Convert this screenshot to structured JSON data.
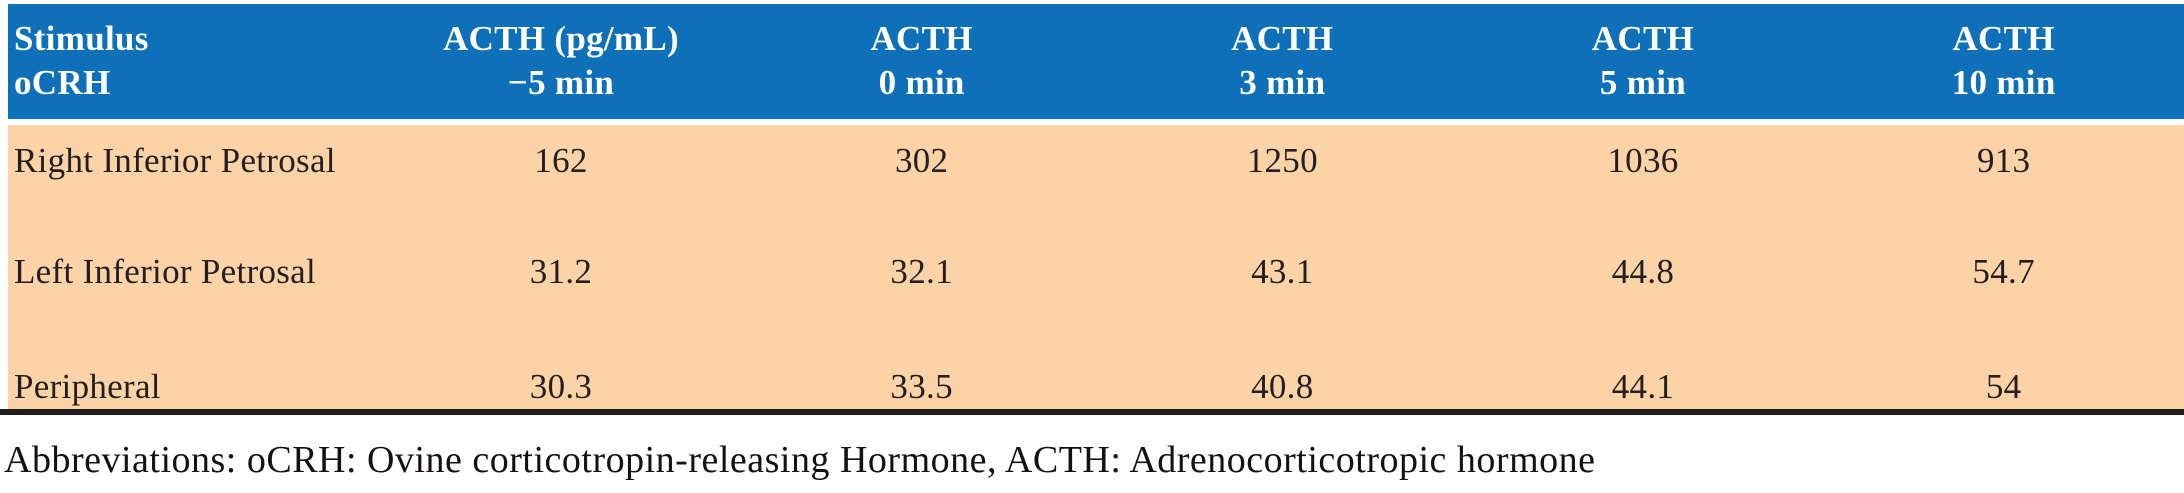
{
  "table": {
    "header": {
      "stimulus": {
        "line1": "Stimulus",
        "line2": "oCRH"
      },
      "time_columns": [
        {
          "line1": "ACTH (pg/mL)",
          "line2": "−5 min"
        },
        {
          "line1": "ACTH",
          "line2": "0 min"
        },
        {
          "line1": "ACTH",
          "line2": "3 min"
        },
        {
          "line1": "ACTH",
          "line2": "5 min"
        },
        {
          "line1": "ACTH",
          "line2": "10 min"
        }
      ]
    },
    "rows": [
      {
        "stimulus": "Right Inferior Petrosal",
        "values": [
          "162",
          "302",
          "1250",
          "1036",
          "913"
        ]
      },
      {
        "stimulus": "Left Inferior Petrosal",
        "values": [
          "31.2",
          "32.1",
          "43.1",
          "44.8",
          "54.7"
        ]
      },
      {
        "stimulus": "Peripheral",
        "values": [
          "30.3",
          "33.5",
          "40.8",
          "44.1",
          "54"
        ]
      }
    ]
  },
  "footnote": "Abbreviations: oCRH: Ovine corticotropin-releasing Hormone, ACTH: Adrenocorticotropic hormone",
  "colors": {
    "header_bg": "#0d70b8",
    "header_text": "#ffffff",
    "body_bg": "#fbd3a6",
    "body_text": "#231f20",
    "bottom_rule": "#1e1b1c"
  },
  "chart_data": {
    "type": "table",
    "columns": [
      "Stimulus oCRH",
      "ACTH (pg/mL) −5 min",
      "ACTH 0 min",
      "ACTH 3 min",
      "ACTH 5 min",
      "ACTH 10 min"
    ],
    "rows": [
      [
        "Right Inferior Petrosal",
        162,
        302,
        1250,
        1036,
        913
      ],
      [
        "Left Inferior Petrosal",
        31.2,
        32.1,
        43.1,
        44.8,
        54.7
      ],
      [
        "Peripheral",
        30.3,
        33.5,
        40.8,
        44.1,
        54
      ]
    ]
  }
}
